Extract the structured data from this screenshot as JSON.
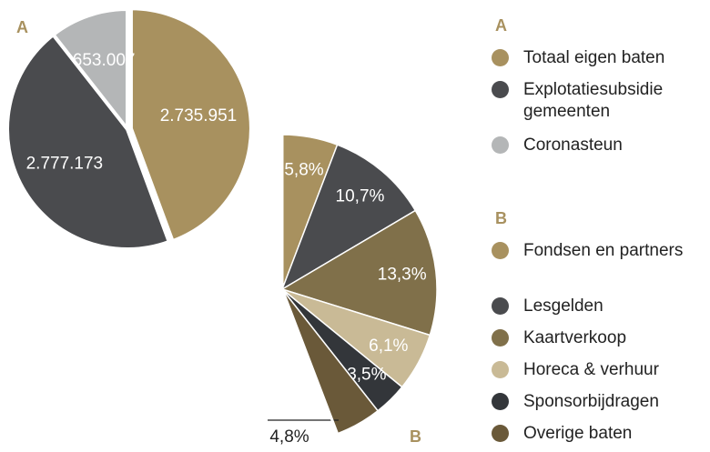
{
  "chart_data": [
    {
      "type": "pie",
      "title": "A",
      "categories": [
        "Totaal eigen baten",
        "Explotatiesubsidie gemeenten",
        "Coronasteun"
      ],
      "values": [
        2735951,
        2777173,
        653007
      ],
      "value_labels": [
        "2.735.951",
        "2.777.173",
        "653.007"
      ],
      "colors": [
        "#a8915f",
        "#4a4b4e",
        "#b4b6b7"
      ]
    },
    {
      "type": "sector",
      "title": "B",
      "categories": [
        "Fondsen en partners",
        "Lesgelden",
        "Kaartverkoop",
        "Horeca & verhuur",
        "Sponsorbijdragen",
        "Overige baten"
      ],
      "values": [
        5.8,
        10.7,
        13.3,
        6.1,
        3.5,
        4.8
      ],
      "value_labels": [
        "5,8%",
        "10,7%",
        "13,3%",
        "6,1%",
        "3,5%",
        "4,8%"
      ],
      "colors": [
        "#a8915f",
        "#4a4b4e",
        "#80704a",
        "#c9ba96",
        "#33363a",
        "#6a5939"
      ]
    }
  ]
}
